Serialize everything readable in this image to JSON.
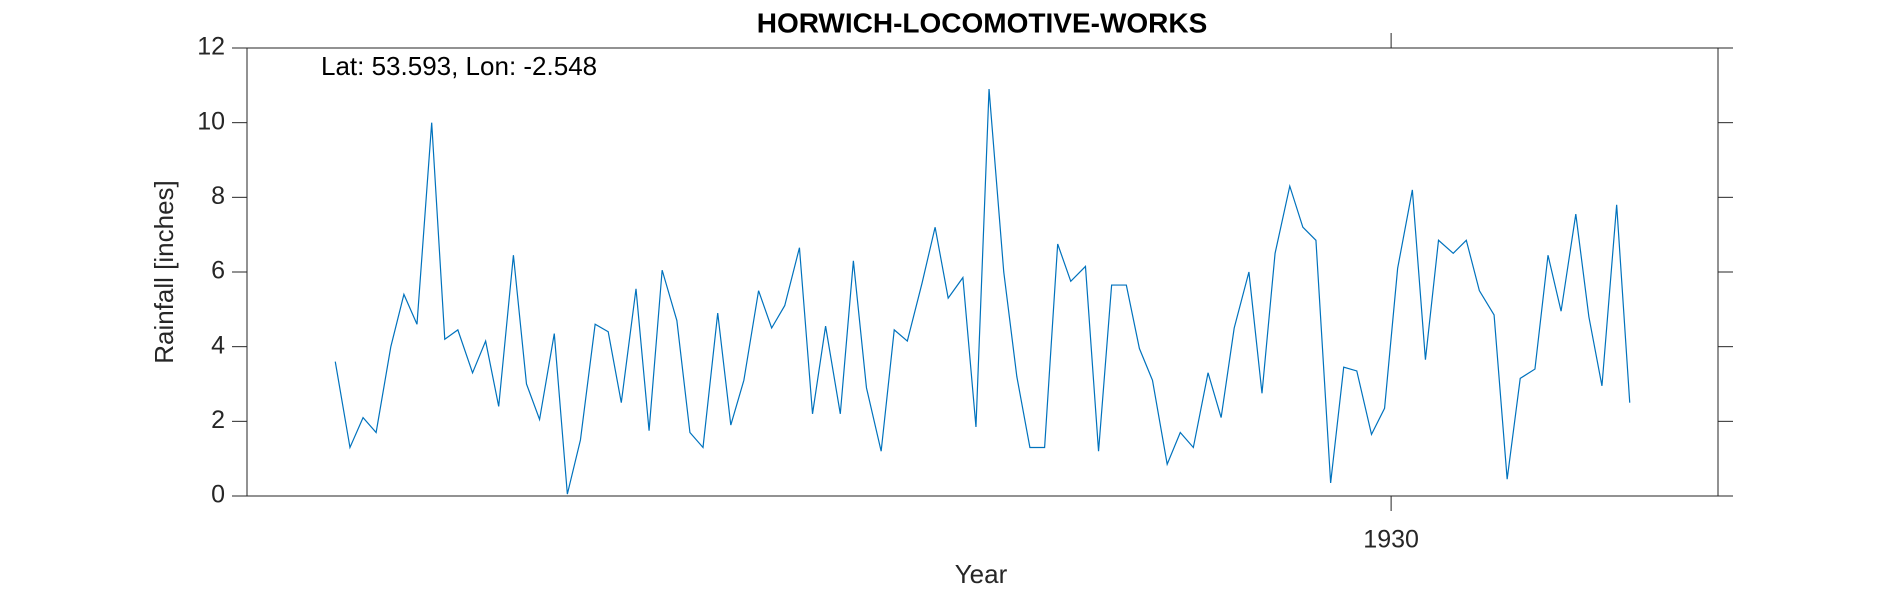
{
  "chart_data": {
    "type": "line",
    "title": "HORWICH-LOCOMOTIVE-WORKS",
    "annotation": "Lat: 53.593, Lon: -2.548",
    "xlabel": "Year",
    "ylabel": "Rainfall [inches]",
    "xlim": [
      1923,
      1932
    ],
    "xticks": [
      1930
    ],
    "ylim": [
      0,
      12
    ],
    "yticks": [
      0,
      2,
      4,
      6,
      8,
      10,
      12
    ],
    "x": [
      1923.54,
      1923.63,
      1923.71,
      1923.79,
      1923.88,
      1923.96,
      1924.04,
      1924.13,
      1924.21,
      1924.29,
      1924.38,
      1924.46,
      1924.54,
      1924.63,
      1924.71,
      1924.79,
      1924.88,
      1924.96,
      1925.04,
      1925.13,
      1925.21,
      1925.29,
      1925.38,
      1925.46,
      1925.54,
      1925.63,
      1925.71,
      1925.79,
      1925.88,
      1925.96,
      1926.04,
      1926.13,
      1926.21,
      1926.29,
      1926.38,
      1926.46,
      1926.54,
      1926.63,
      1926.71,
      1926.79,
      1926.88,
      1926.96,
      1927.04,
      1927.13,
      1927.21,
      1927.29,
      1927.38,
      1927.46,
      1927.54,
      1927.63,
      1927.71,
      1927.79,
      1927.88,
      1927.96,
      1928.04,
      1928.13,
      1928.21,
      1928.29,
      1928.38,
      1928.46,
      1928.54,
      1928.63,
      1928.71,
      1928.79,
      1928.88,
      1928.96,
      1929.04,
      1929.13,
      1929.21,
      1929.29,
      1929.38,
      1929.46,
      1929.54,
      1929.63,
      1929.71,
      1929.79,
      1929.88,
      1929.96,
      1930.04,
      1930.13,
      1930.21,
      1930.29,
      1930.38,
      1930.46,
      1930.54,
      1930.63,
      1930.71,
      1930.79,
      1930.88,
      1930.96,
      1931.04,
      1931.13,
      1931.21,
      1931.29,
      1931.38,
      1931.46
    ],
    "series": [
      {
        "color": "#0072bd",
        "values": [
          3.6,
          1.3,
          2.1,
          1.7,
          4.0,
          5.4,
          4.6,
          10.0,
          4.2,
          4.45,
          3.3,
          4.15,
          2.4,
          6.45,
          3.0,
          2.05,
          4.35,
          0.05,
          1.5,
          4.6,
          4.4,
          2.5,
          5.55,
          1.75,
          6.05,
          4.7,
          1.7,
          1.3,
          4.9,
          1.9,
          3.1,
          5.5,
          4.5,
          5.1,
          6.65,
          2.2,
          4.55,
          2.2,
          6.3,
          2.9,
          1.2,
          4.45,
          4.15,
          5.7,
          7.2,
          5.3,
          5.85,
          1.85,
          10.9,
          6.0,
          3.2,
          1.3,
          1.3,
          6.75,
          5.75,
          6.15,
          1.2,
          5.65,
          5.65,
          3.95,
          3.1,
          0.85,
          1.7,
          1.3,
          3.3,
          2.1,
          4.5,
          6.0,
          2.75,
          6.5,
          8.3,
          7.2,
          6.85,
          0.35,
          3.45,
          3.35,
          1.65,
          2.35,
          6.1,
          8.2,
          3.65,
          6.85,
          6.5,
          6.85,
          5.5,
          4.85,
          0.45,
          3.15,
          3.4,
          6.45,
          4.95,
          7.55,
          4.8,
          2.95,
          7.8,
          2.5
        ]
      }
    ]
  }
}
